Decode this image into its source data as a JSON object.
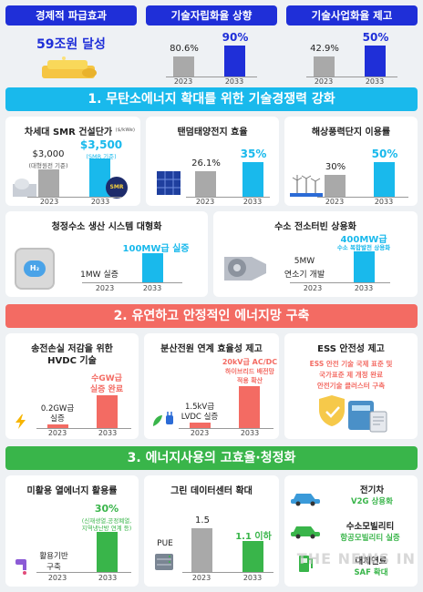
{
  "top": {
    "econ": {
      "label": "경제적 파급효과",
      "value": "59조원 달성"
    },
    "self_sufficiency": {
      "label": "기술자립화율 상향",
      "v2023": "80.6%",
      "v2033": "90%",
      "y1": "2023",
      "y2": "2033",
      "level_2023": 0.806,
      "level_2033": 0.9
    },
    "commercialization": {
      "label": "기술사업화율 제고",
      "v2023": "42.9%",
      "v2033": "50%",
      "y1": "2023",
      "y2": "2033",
      "level_2023": 0.429,
      "level_2033": 0.5
    }
  },
  "section1": {
    "title": "1. 무탄소에너지 확대를 위한 기술경쟁력 강화",
    "smr": {
      "title": "차세대 SMR 건설단가",
      "unit": "($/kWe)",
      "v2023": "$3,000",
      "v2023_note": "(대형원전 기준)",
      "v2033": "$3,500",
      "v2033_note": "(SMR 기준)",
      "badge": "SMR",
      "y1": "2023",
      "y2": "2033"
    },
    "tandem": {
      "title": "탠덤태양전지 효율",
      "v2023": "26.1%",
      "v2033": "35%",
      "y1": "2023",
      "y2": "2033"
    },
    "wind": {
      "title": "해상풍력단지 이용률",
      "v2023": "30%",
      "v2033": "50%",
      "y1": "2023",
      "y2": "2033"
    },
    "hydrogen": {
      "title": "청정수소 생산 시스템 대형화",
      "v2023": "1MW 실증",
      "v2033": "100MW급 실증",
      "y1": "2023",
      "y2": "2033",
      "h2": "H₂"
    },
    "turbine": {
      "title": "수소 전소터빈 상용화",
      "v2023_a": "5MW",
      "v2023_b": "연소기 개발",
      "v2033_a": "400MW급",
      "v2033_b": "수소 복합발전 상용화",
      "y1": "2023",
      "y2": "2033"
    }
  },
  "section2": {
    "title": "2. 유연하고 안정적인 에너지망 구축",
    "hvdc": {
      "title_a": "송전손실 저감을 위한",
      "title_b": "HVDC 기술",
      "v2023_a": "0.2GW급",
      "v2023_b": "실증",
      "v2033_a": "수GW급",
      "v2033_b": "실증 완료",
      "y1": "2023",
      "y2": "2033"
    },
    "distributed": {
      "title": "분산전원 연계 효율성 제고",
      "v2023_a": "1.5kV급",
      "v2023_b": "LVDC 실증",
      "v2033_a": "20kV급 AC/DC",
      "v2033_b": "하이브리드 배전망",
      "v2033_c": "적용 확산",
      "y1": "2023",
      "y2": "2033"
    },
    "ess": {
      "title": "ESS 안전성 제고",
      "line1": "ESS 안전 기술 국제 표준 및",
      "line2": "국가표준 제 개정 완료",
      "line3": "안전기술 클러스터 구축"
    }
  },
  "section3": {
    "title": "3. 에너지사용의 고효율·청정화",
    "heat": {
      "title": "미활용 열에너지 활용률",
      "v2023_a": "활용기반",
      "v2023_b": "구축",
      "v2033": "30%",
      "v2033_note_a": "(신재생열,공정폐열,",
      "v2033_note_b": "지역냉난방 연계 등)",
      "y1": "2023",
      "y2": "2033"
    },
    "datacenter": {
      "title": "그린 데이터센터 확대",
      "metric": "PUE",
      "v2023": "1.5",
      "v2033": "1.1 이하",
      "y1": "2023",
      "y2": "2033"
    },
    "mobility": [
      {
        "heading": "전기차",
        "detail": "V2G 상용화"
      },
      {
        "heading": "수소모빌리티",
        "detail": "항공모빌리티 실증"
      },
      {
        "heading": "대체연료",
        "detail": "SAF 확대"
      }
    ]
  },
  "watermark": "THE NEWS IN",
  "colors": {
    "blue": "#1f2fd8",
    "cyan": "#19b9ec",
    "red": "#f36b63",
    "green": "#39b54a",
    "gray": "#a9a9a9"
  }
}
